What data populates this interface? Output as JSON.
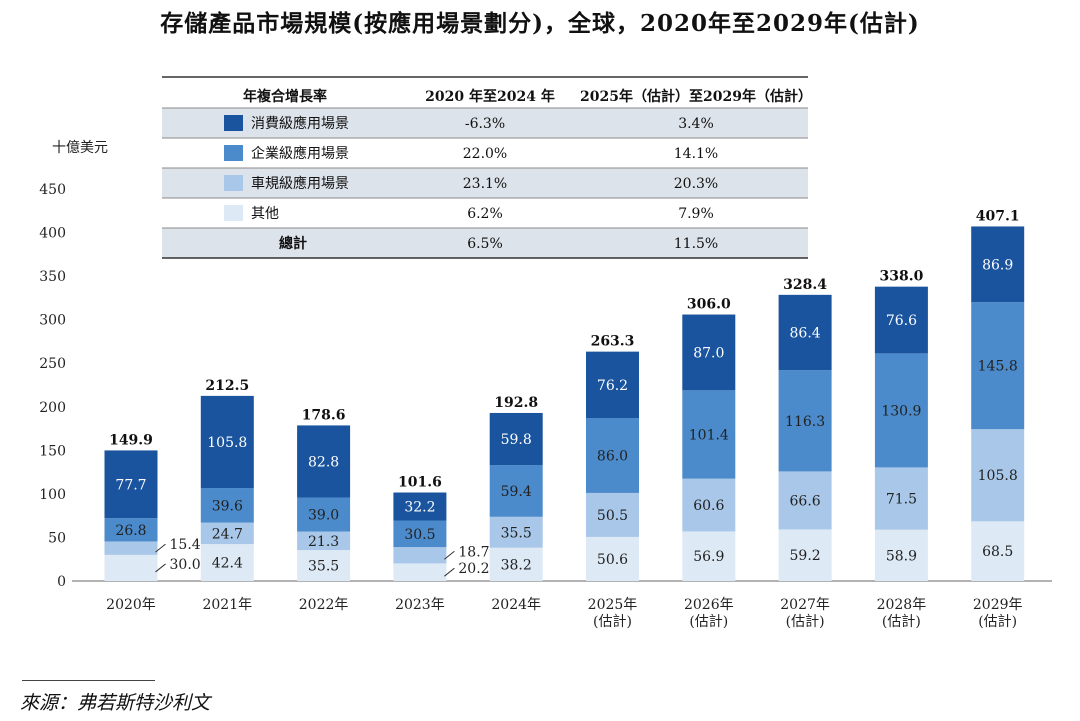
{
  "chart_data": {
    "type": "bar",
    "stacked": true,
    "title": "存儲產品市場規模(按應用場景劃分)，全球，2020年至2029年(估計)",
    "ylabel": "十億美元",
    "xlabel": "",
    "ylim": [
      0,
      450
    ],
    "yticks": [
      0,
      50,
      100,
      150,
      200,
      250,
      300,
      350,
      400,
      450
    ],
    "categories": [
      "2020年",
      "2021年",
      "2022年",
      "2023年",
      "2024年",
      "2025年",
      "2026年",
      "2027年",
      "2028年",
      "2029年"
    ],
    "category_notes": [
      "",
      "",
      "",
      "",
      "",
      "(估計)",
      "(估計)",
      "(估計)",
      "(估計)",
      "(估計)"
    ],
    "series": [
      {
        "name": "其他",
        "color": "#dde9f5",
        "values": [
          30.0,
          42.4,
          35.5,
          20.2,
          38.2,
          50.6,
          56.9,
          59.2,
          58.9,
          68.5
        ]
      },
      {
        "name": "車規級應用場景",
        "color": "#a9c7e8",
        "values": [
          15.4,
          24.7,
          21.3,
          18.7,
          35.5,
          50.5,
          60.6,
          66.6,
          71.5,
          105.8
        ]
      },
      {
        "name": "企業級應用場景",
        "color": "#4b8acb",
        "values": [
          26.8,
          39.6,
          39.0,
          30.5,
          59.4,
          86.0,
          101.4,
          116.3,
          130.9,
          145.8
        ]
      },
      {
        "name": "消費級應用場景",
        "color": "#1a539e",
        "values": [
          77.7,
          105.8,
          82.8,
          32.2,
          59.8,
          76.2,
          87.0,
          86.4,
          76.6,
          86.9
        ]
      }
    ],
    "totals": [
      149.9,
      212.5,
      178.6,
      101.6,
      192.8,
      263.3,
      306.0,
      328.4,
      338.0,
      407.1
    ],
    "outside_labels": [
      {
        "category": "2020年",
        "series": "車規級應用場景"
      },
      {
        "category": "2020年",
        "series": "其他"
      },
      {
        "category": "2023年",
        "series": "車規級應用場景"
      },
      {
        "category": "2023年",
        "series": "其他"
      }
    ],
    "cagr_table": {
      "header": [
        "年複合增長率",
        "2020 年至2024 年",
        "2025年（估計）至2029年（估計）"
      ],
      "rows": [
        {
          "label": "消費級應用場景",
          "swatch": "#1a539e",
          "values": [
            "-6.3%",
            "3.4%"
          ]
        },
        {
          "label": "企業級應用場景",
          "swatch": "#4b8acb",
          "values": [
            "22.0%",
            "14.1%"
          ]
        },
        {
          "label": "車規級應用場景",
          "swatch": "#a9c7e8",
          "values": [
            "23.1%",
            "20.3%"
          ]
        },
        {
          "label": "其他",
          "swatch": "#dde9f5",
          "values": [
            "6.2%",
            "7.9%"
          ]
        },
        {
          "label": "總計",
          "swatch": "",
          "values": [
            "6.5%",
            "11.5%"
          ]
        }
      ],
      "stripe_color": "#dde3ea"
    }
  },
  "source": "來源：弗若斯特沙利文"
}
